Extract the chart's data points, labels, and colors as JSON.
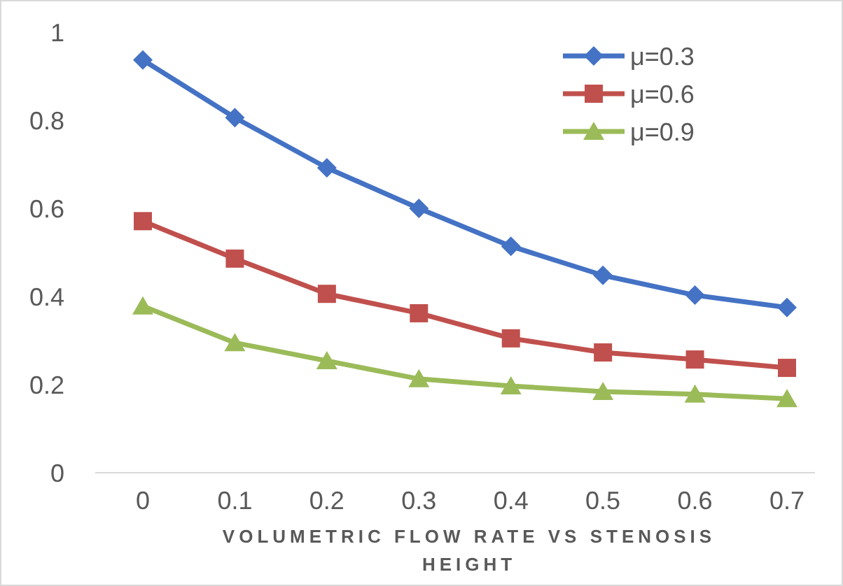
{
  "chart_data": {
    "type": "line",
    "xlabel": "VOLUMETRIC FLOW RATE VS STENOSIS HEIGHT",
    "categories": [
      "0",
      "0.1",
      "0.2",
      "0.3",
      "0.4",
      "0.5",
      "0.6",
      "0.7"
    ],
    "series": [
      {
        "name": "μ=0.3",
        "color": "#4472c4",
        "marker": "diamond",
        "values": [
          0.937,
          0.806,
          0.692,
          0.6,
          0.514,
          0.448,
          0.403,
          0.375
        ]
      },
      {
        "name": "μ=0.6",
        "color": "#c0504d",
        "marker": "square",
        "values": [
          0.571,
          0.486,
          0.406,
          0.362,
          0.305,
          0.273,
          0.257,
          0.238
        ]
      },
      {
        "name": "μ=0.9",
        "color": "#9bbb59",
        "marker": "triangle",
        "values": [
          0.378,
          0.295,
          0.254,
          0.213,
          0.197,
          0.184,
          0.178,
          0.168
        ]
      }
    ],
    "ylim": [
      0,
      1
    ],
    "yticks": [
      0,
      0.2,
      0.4,
      0.6,
      0.8,
      1
    ],
    "grid": false,
    "legend": "top right",
    "line_style": "solid"
  }
}
